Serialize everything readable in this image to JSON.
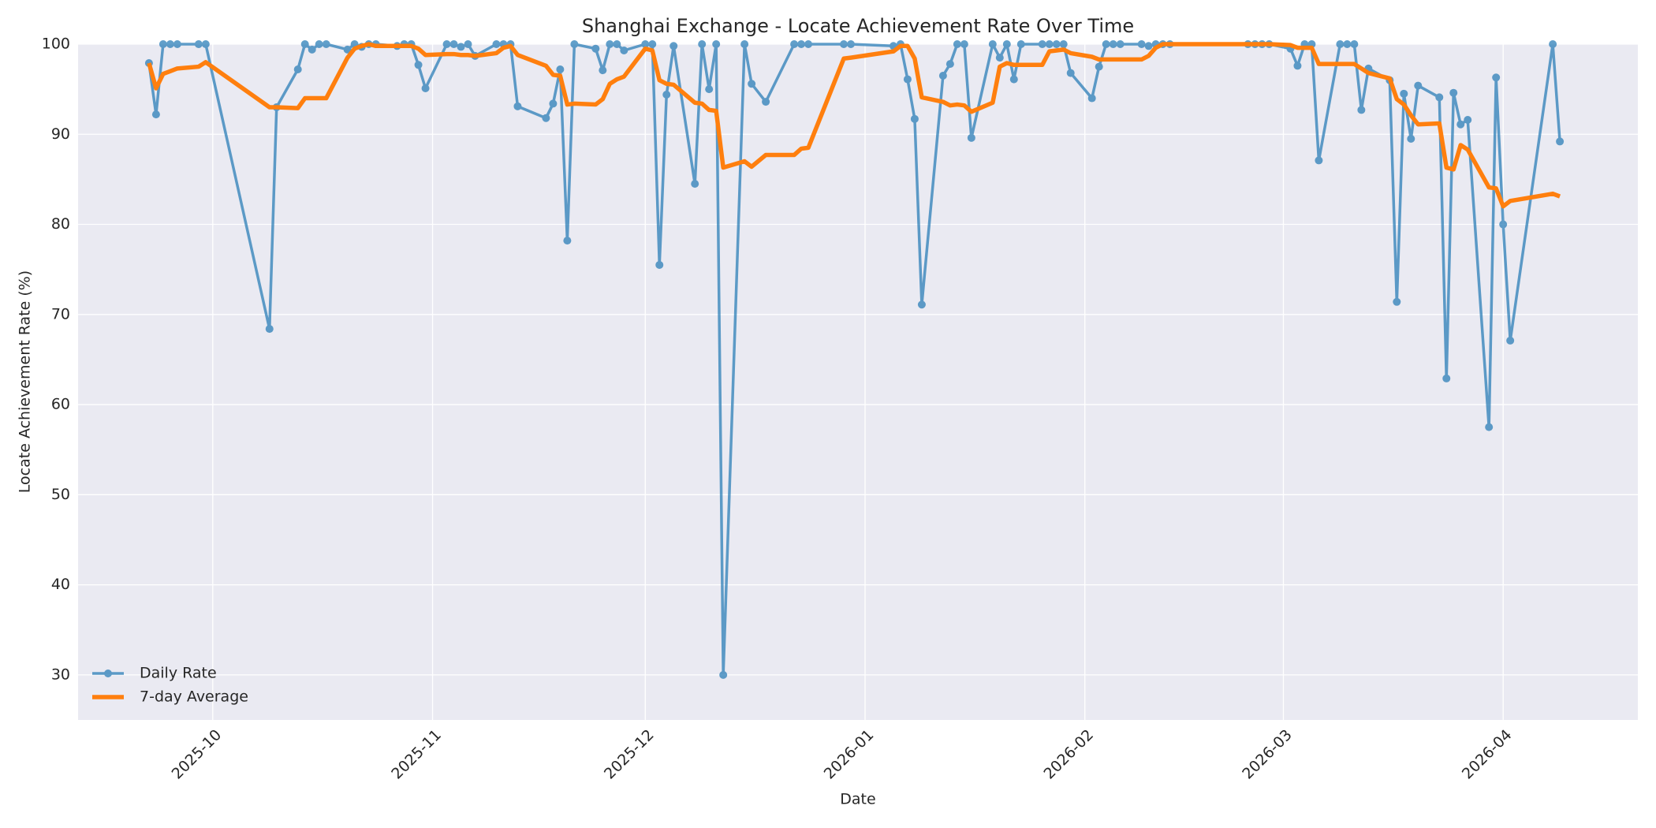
{
  "chart_data": {
    "type": "line",
    "title": "Shanghai Exchange - Locate Achievement Rate Over Time",
    "xlabel": "Date",
    "ylabel": "Locate Achievement Rate (%)",
    "x": [
      "2025-09-22",
      "2025-09-23",
      "2025-09-24",
      "2025-09-25",
      "2025-09-26",
      "2025-09-29",
      "2025-09-30",
      "2025-10-09",
      "2025-10-10",
      "2025-10-13",
      "2025-10-14",
      "2025-10-15",
      "2025-10-16",
      "2025-10-17",
      "2025-10-20",
      "2025-10-21",
      "2025-10-22",
      "2025-10-23",
      "2025-10-24",
      "2025-10-27",
      "2025-10-28",
      "2025-10-29",
      "2025-10-30",
      "2025-10-31",
      "2025-11-03",
      "2025-11-04",
      "2025-11-05",
      "2025-11-06",
      "2025-11-07",
      "2025-11-10",
      "2025-11-11",
      "2025-11-12",
      "2025-11-13",
      "2025-11-17",
      "2025-11-18",
      "2025-11-19",
      "2025-11-20",
      "2025-11-21",
      "2025-11-24",
      "2025-11-25",
      "2025-11-26",
      "2025-11-27",
      "2025-11-28",
      "2025-12-01",
      "2025-12-02",
      "2025-12-03",
      "2025-12-04",
      "2025-12-05",
      "2025-12-08",
      "2025-12-09",
      "2025-12-10",
      "2025-12-11",
      "2025-12-12",
      "2025-12-15",
      "2025-12-16",
      "2025-12-18",
      "2025-12-22",
      "2025-12-23",
      "2025-12-24",
      "2025-12-29",
      "2025-12-30",
      "2026-01-05",
      "2026-01-06",
      "2026-01-07",
      "2026-01-08",
      "2026-01-09",
      "2026-01-12",
      "2026-01-13",
      "2026-01-14",
      "2026-01-15",
      "2026-01-16",
      "2026-01-19",
      "2026-01-20",
      "2026-01-21",
      "2026-01-22",
      "2026-01-23",
      "2026-01-26",
      "2026-01-27",
      "2026-01-28",
      "2026-01-29",
      "2026-01-30",
      "2026-02-02",
      "2026-02-03",
      "2026-02-04",
      "2026-02-05",
      "2026-02-06",
      "2026-02-09",
      "2026-02-10",
      "2026-02-11",
      "2026-02-12",
      "2026-02-13",
      "2026-02-24",
      "2026-02-25",
      "2026-02-26",
      "2026-02-27",
      "2026-03-02",
      "2026-03-03",
      "2026-03-04",
      "2026-03-05",
      "2026-03-06",
      "2026-03-09",
      "2026-03-10",
      "2026-03-11",
      "2026-03-12",
      "2026-03-13",
      "2026-03-16",
      "2026-03-17",
      "2026-03-18",
      "2026-03-19",
      "2026-03-20",
      "2026-03-23",
      "2026-03-24",
      "2026-03-25",
      "2026-03-26",
      "2026-03-27",
      "2026-03-30",
      "2026-03-31",
      "2026-04-01",
      "2026-04-02",
      "2026-04-08",
      "2026-04-09"
    ],
    "series": [
      {
        "name": "Daily Rate",
        "color": "#1f77b4",
        "marker": true,
        "width": 3.5,
        "opacity": 0.7,
        "values": [
          97.9,
          92.2,
          100,
          100,
          100,
          100,
          100,
          68.4,
          93.0,
          97.2,
          100,
          99.4,
          100,
          100,
          99.4,
          100,
          99.7,
          100,
          100,
          99.8,
          100,
          100,
          97.7,
          95.1,
          100,
          100,
          99.7,
          100,
          98.7,
          100,
          100,
          100,
          93.1,
          91.8,
          93.4,
          97.2,
          78.2,
          100,
          99.5,
          97.1,
          100,
          100,
          99.3,
          100,
          100,
          75.5,
          94.4,
          99.8,
          84.5,
          100,
          95.0,
          100,
          30.0,
          100,
          95.6,
          93.6,
          100,
          100,
          100,
          100,
          100,
          99.8,
          100,
          96.1,
          91.7,
          71.1,
          96.5,
          97.8,
          100,
          100,
          89.6,
          100,
          98.5,
          100,
          96.1,
          100,
          100,
          100,
          100,
          100,
          96.8,
          94.0,
          97.5,
          100,
          100,
          100,
          100,
          99.8,
          100,
          100,
          100,
          100,
          100,
          100,
          100,
          99.5,
          97.6,
          100,
          100,
          87.1,
          100,
          100,
          100,
          92.7,
          97.3,
          96.0,
          71.4,
          94.5,
          89.5,
          95.4,
          94.1,
          62.9,
          94.6,
          91.1,
          91.6,
          57.5,
          96.3,
          80.0,
          67.1,
          100,
          89.2
        ]
      },
      {
        "name": "7-day Average",
        "color": "#ff7f0e",
        "marker": false,
        "width": 5.5,
        "opacity": 1,
        "values": [
          97.9,
          95.1,
          96.7,
          97.0,
          97.3,
          97.5,
          98.0,
          93.0,
          93.0,
          92.9,
          94.0,
          94.0,
          94.0,
          94.0,
          98.5,
          99.5,
          99.8,
          100,
          99.8,
          99.8,
          99.8,
          99.8,
          99.5,
          98.8,
          98.9,
          98.9,
          98.8,
          98.8,
          98.7,
          99.0,
          99.6,
          99.8,
          98.8,
          97.6,
          96.6,
          96.5,
          93.3,
          93.4,
          93.3,
          93.9,
          95.6,
          96.1,
          96.4,
          99.5,
          99.3,
          96.0,
          95.6,
          95.5,
          93.5,
          93.4,
          92.7,
          92.6,
          86.3,
          87.0,
          86.4,
          87.7,
          87.7,
          88.4,
          88.5,
          98.4,
          98.5,
          99.2,
          99.8,
          99.8,
          98.4,
          94.1,
          93.6,
          93.2,
          93.3,
          93.2,
          92.5,
          93.5,
          97.5,
          97.9,
          97.7,
          97.7,
          97.7,
          99.2,
          99.3,
          99.4,
          99.0,
          98.6,
          98.3,
          98.3,
          98.3,
          98.3,
          98.3,
          98.7,
          99.6,
          100,
          100,
          100,
          100,
          100,
          100,
          99.9,
          99.6,
          99.6,
          99.6,
          97.8,
          97.8,
          97.8,
          97.8,
          97.3,
          96.8,
          96.2,
          93.9,
          93.3,
          92.1,
          91.1,
          91.2,
          86.3,
          86.1,
          88.8,
          88.3,
          84.1,
          84.0,
          82.0,
          82.6,
          83.4,
          83.1
        ]
      }
    ],
    "xlim": [
      "2025-09-12",
      "2026-04-20"
    ],
    "xticks": [
      {
        "value": "2025-10-01",
        "label": "2025-10"
      },
      {
        "value": "2025-11-01",
        "label": "2025-11"
      },
      {
        "value": "2025-12-01",
        "label": "2025-12"
      },
      {
        "value": "2026-01-01",
        "label": "2026-01"
      },
      {
        "value": "2026-02-01",
        "label": "2026-02"
      },
      {
        "value": "2026-03-01",
        "label": "2026-03"
      },
      {
        "value": "2026-04-01",
        "label": "2026-04"
      }
    ],
    "ylim": [
      25,
      100
    ],
    "yticks": [
      30,
      40,
      50,
      60,
      70,
      80,
      90,
      100
    ],
    "grid": true,
    "legend": "lower left"
  }
}
